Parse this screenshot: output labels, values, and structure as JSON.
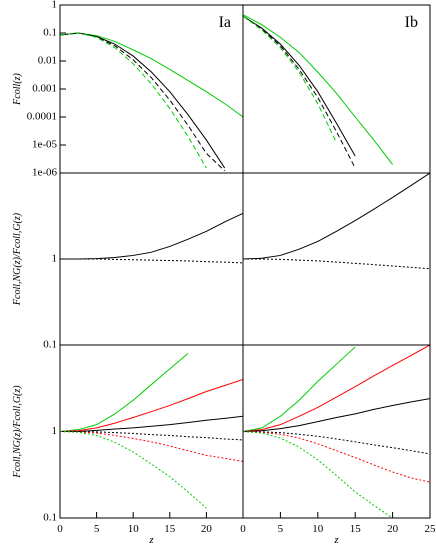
{
  "chart_data": [
    {
      "type": "line",
      "panel_label": "Ia",
      "ylabel": "Fcoll(z)",
      "log_y": true,
      "xlim": [
        0,
        25
      ],
      "ylim": [
        1e-06,
        1
      ],
      "yticks": [
        1,
        0.1,
        0.01,
        0.001,
        0.0001,
        {
          "value": 1e-05,
          "label": "1e-05"
        },
        {
          "value": 1e-06,
          "label": "1e-06"
        }
      ],
      "x": [
        0,
        2.5,
        5,
        7.5,
        10,
        12.5,
        15,
        17.5,
        20,
        22.5,
        25
      ],
      "series": [
        {
          "color": "#00cc00",
          "dash": "solid",
          "values": [
            0.085,
            0.1,
            0.08,
            0.05,
            0.025,
            0.012,
            0.005,
            0.002,
            0.0008,
            0.0003,
            0.0001
          ]
        },
        {
          "color": "#000000",
          "dash": "solid",
          "values": [
            0.085,
            0.1,
            0.075,
            0.04,
            0.015,
            0.004,
            0.0008,
            0.00012,
            1.5e-05,
            1.5e-06,
            null
          ]
        },
        {
          "color": "#000000",
          "dash": "dashed",
          "values": [
            0.085,
            0.1,
            0.072,
            0.035,
            0.011,
            0.0025,
            0.0004,
            5e-05,
            5e-06,
            1.2e-06,
            null
          ]
        },
        {
          "color": "#00cc00",
          "dash": "dashed",
          "values": [
            0.085,
            0.1,
            0.07,
            0.03,
            0.008,
            0.0015,
            0.0002,
            2e-05,
            1.5e-06,
            null,
            null
          ]
        }
      ]
    },
    {
      "type": "line",
      "panel_label": "Ib",
      "log_y": true,
      "xlim": [
        0,
        25
      ],
      "ylim": [
        1e-06,
        1
      ],
      "x": [
        0,
        2.5,
        5,
        7.5,
        10,
        12.5,
        15,
        17.5,
        20,
        22.5,
        25
      ],
      "series": [
        {
          "color": "#00cc00",
          "dash": "solid",
          "values": [
            0.45,
            0.2,
            0.07,
            0.02,
            0.004,
            0.0007,
            0.0001,
            1.5e-05,
            2e-06,
            null,
            null
          ]
        },
        {
          "color": "#000000",
          "dash": "solid",
          "values": [
            0.4,
            0.15,
            0.04,
            0.007,
            0.0008,
            6e-05,
            4e-06,
            null,
            null,
            null,
            null
          ]
        },
        {
          "color": "#000000",
          "dash": "dashed",
          "values": [
            0.4,
            0.14,
            0.035,
            0.005,
            0.0005,
            3e-05,
            1.5e-06,
            null,
            null,
            null,
            null
          ]
        },
        {
          "color": "#00cc00",
          "dash": "dashed",
          "values": [
            0.4,
            0.13,
            0.03,
            0.004,
            0.0003,
            1.2e-05,
            null,
            null,
            null,
            null,
            null
          ]
        }
      ]
    },
    {
      "type": "line",
      "ylabel": "Fcoll,NG(z)/Fcoll,G(z)",
      "log_y": true,
      "xlim": [
        0,
        25
      ],
      "ylim": [
        0.1,
        10
      ],
      "yticks": [
        1,
        0.1
      ],
      "x": [
        0,
        2.5,
        5,
        7.5,
        10,
        12.5,
        15,
        17.5,
        20,
        22.5,
        25
      ],
      "series": [
        {
          "color": "#000000",
          "dash": "solid",
          "values": [
            1,
            1,
            1.01,
            1.04,
            1.1,
            1.2,
            1.4,
            1.7,
            2.1,
            2.7,
            3.4
          ]
        },
        {
          "color": "#000000",
          "dash": "dotted",
          "values": [
            1,
            1,
            1,
            0.99,
            0.98,
            0.97,
            0.96,
            0.95,
            0.93,
            0.92,
            0.9
          ]
        }
      ]
    },
    {
      "type": "line",
      "log_y": true,
      "xlim": [
        0,
        25
      ],
      "ylim": [
        0.1,
        10
      ],
      "x": [
        0,
        2.5,
        5,
        7.5,
        10,
        12.5,
        15,
        17.5,
        20,
        22.5,
        25
      ],
      "series": [
        {
          "color": "#000000",
          "dash": "solid",
          "values": [
            1,
            1.02,
            1.1,
            1.3,
            1.6,
            2.1,
            2.8,
            3.8,
            5.2,
            7.2,
            10
          ]
        },
        {
          "color": "#000000",
          "dash": "dotted",
          "values": [
            1,
            1,
            0.99,
            0.97,
            0.95,
            0.92,
            0.89,
            0.86,
            0.83,
            0.8,
            0.77
          ]
        }
      ]
    },
    {
      "type": "line",
      "ylabel": "Fcoll,NG(z)/Fcoll,G(z)",
      "xlabel": "z",
      "log_y": true,
      "xlim": [
        0,
        25
      ],
      "ylim": [
        0.1,
        10
      ],
      "yticks": [
        1,
        0.1
      ],
      "xticks": [
        0,
        5,
        10,
        15,
        20
      ],
      "x": [
        0,
        2.5,
        5,
        7.5,
        10,
        12.5,
        15,
        17.5,
        20,
        22.5,
        25
      ],
      "series": [
        {
          "color": "#00cc00",
          "dash": "solid",
          "values": [
            1,
            1.05,
            1.2,
            1.6,
            2.3,
            3.5,
            5.3,
            8,
            null,
            null,
            null
          ]
        },
        {
          "color": "#ff0000",
          "dash": "solid",
          "values": [
            1,
            1.02,
            1.1,
            1.25,
            1.45,
            1.7,
            2,
            2.4,
            2.9,
            3.4,
            4
          ]
        },
        {
          "color": "#000000",
          "dash": "solid",
          "values": [
            1,
            1,
            1.03,
            1.07,
            1.1,
            1.15,
            1.2,
            1.27,
            1.35,
            1.42,
            1.5
          ]
        },
        {
          "color": "#000000",
          "dash": "dotted",
          "values": [
            1,
            1,
            0.99,
            0.97,
            0.95,
            0.92,
            0.9,
            0.87,
            0.85,
            0.82,
            0.8
          ]
        },
        {
          "color": "#ff0000",
          "dash": "dotted",
          "values": [
            1,
            0.99,
            0.96,
            0.9,
            0.83,
            0.76,
            0.68,
            0.6,
            0.53,
            0.49,
            0.45
          ]
        },
        {
          "color": "#00cc00",
          "dash": "dotted",
          "values": [
            1,
            0.98,
            0.9,
            0.75,
            0.58,
            0.42,
            0.3,
            0.2,
            0.13,
            null,
            null
          ]
        }
      ]
    },
    {
      "type": "line",
      "xlabel": "z",
      "log_y": true,
      "xlim": [
        0,
        25
      ],
      "ylim": [
        0.1,
        10
      ],
      "xticks": [
        0,
        5,
        10,
        15,
        20,
        25
      ],
      "x": [
        0,
        2.5,
        5,
        7.5,
        10,
        12.5,
        15,
        17.5,
        20,
        22.5,
        25
      ],
      "series": [
        {
          "color": "#00cc00",
          "dash": "solid",
          "values": [
            1,
            1.1,
            1.5,
            2.3,
            3.8,
            6,
            9.5,
            null,
            null,
            null,
            null
          ]
        },
        {
          "color": "#ff0000",
          "dash": "solid",
          "values": [
            1,
            1.05,
            1.2,
            1.5,
            1.9,
            2.5,
            3.3,
            4.4,
            5.8,
            7.6,
            10
          ]
        },
        {
          "color": "#000000",
          "dash": "solid",
          "values": [
            1,
            1.02,
            1.08,
            1.17,
            1.3,
            1.45,
            1.6,
            1.8,
            2,
            2.2,
            2.4
          ]
        },
        {
          "color": "#000000",
          "dash": "dotted",
          "values": [
            1,
            0.99,
            0.97,
            0.93,
            0.88,
            0.82,
            0.76,
            0.7,
            0.65,
            0.6,
            0.55
          ]
        },
        {
          "color": "#ff0000",
          "dash": "dotted",
          "values": [
            1,
            0.98,
            0.93,
            0.84,
            0.72,
            0.6,
            0.5,
            0.41,
            0.34,
            0.29,
            0.26
          ]
        },
        {
          "color": "#00cc00",
          "dash": "dotted",
          "values": [
            1,
            0.96,
            0.84,
            0.66,
            0.47,
            0.31,
            0.2,
            0.14,
            0.1,
            null,
            null
          ]
        }
      ]
    }
  ]
}
